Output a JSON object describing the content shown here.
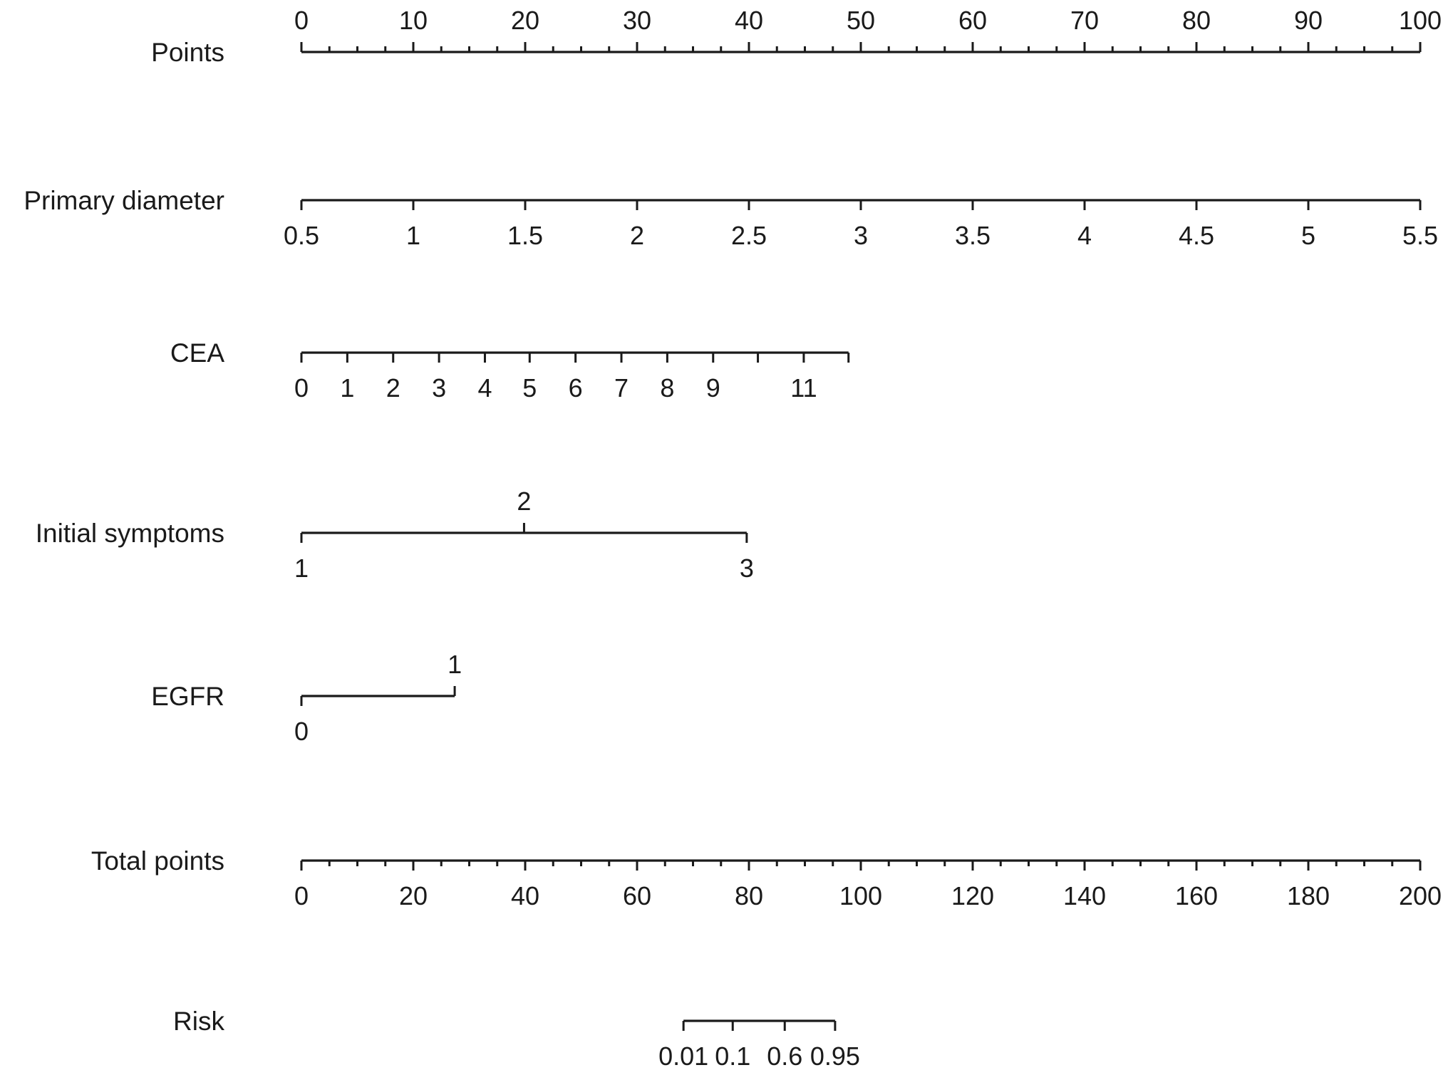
{
  "chart_data": {
    "type": "nomogram",
    "title": "",
    "rows": [
      {
        "label": "Points",
        "points_range": [
          0,
          100
        ],
        "label_position": "above",
        "ticks": [
          {
            "value": 0,
            "points": 0,
            "label": "0"
          },
          {
            "value": 10,
            "points": 10,
            "label": "10"
          },
          {
            "value": 20,
            "points": 20,
            "label": "20"
          },
          {
            "value": 30,
            "points": 30,
            "label": "30"
          },
          {
            "value": 40,
            "points": 40,
            "label": "40"
          },
          {
            "value": 50,
            "points": 50,
            "label": "50"
          },
          {
            "value": 60,
            "points": 60,
            "label": "60"
          },
          {
            "value": 70,
            "points": 70,
            "label": "70"
          },
          {
            "value": 80,
            "points": 80,
            "label": "80"
          },
          {
            "value": 90,
            "points": 90,
            "label": "90"
          },
          {
            "value": 100,
            "points": 100,
            "label": "100"
          }
        ],
        "minor_step": 2.5
      },
      {
        "label": "Primary diameter",
        "points_range": [
          0,
          100
        ],
        "label_position": "below",
        "ticks": [
          {
            "value": 0.5,
            "points": 0,
            "label": "0.5"
          },
          {
            "value": 1,
            "points": 10,
            "label": "1"
          },
          {
            "value": 1.5,
            "points": 20,
            "label": "1.5"
          },
          {
            "value": 2,
            "points": 30,
            "label": "2"
          },
          {
            "value": 2.5,
            "points": 40,
            "label": "2.5"
          },
          {
            "value": 3,
            "points": 50,
            "label": "3"
          },
          {
            "value": 3.5,
            "points": 60,
            "label": "3.5"
          },
          {
            "value": 4,
            "points": 70,
            "label": "4"
          },
          {
            "value": 4.5,
            "points": 80,
            "label": "4.5"
          },
          {
            "value": 5,
            "points": 90,
            "label": "5"
          },
          {
            "value": 5.5,
            "points": 100,
            "label": "5.5"
          }
        ]
      },
      {
        "label": "CEA",
        "points_range": [
          0,
          48.9
        ],
        "label_position": "below",
        "ticks": [
          {
            "value": 0,
            "points": 0,
            "label": "0"
          },
          {
            "value": 1,
            "points": 4.1,
            "label": "1"
          },
          {
            "value": 2,
            "points": 8.2,
            "label": "2"
          },
          {
            "value": 3,
            "points": 12.3,
            "label": "3"
          },
          {
            "value": 4,
            "points": 16.4,
            "label": "4"
          },
          {
            "value": 5,
            "points": 20.4,
            "label": "5"
          },
          {
            "value": 6,
            "points": 24.5,
            "label": "6"
          },
          {
            "value": 7,
            "points": 28.6,
            "label": "7"
          },
          {
            "value": 8,
            "points": 32.7,
            "label": "8"
          },
          {
            "value": 9,
            "points": 36.8,
            "label": "9"
          },
          {
            "value": 10,
            "points": 40.8,
            "label": ""
          },
          {
            "value": 11,
            "points": 44.9,
            "label": "11"
          },
          {
            "value": 12,
            "points": 48.9,
            "label": ""
          }
        ]
      },
      {
        "label": "Initial symptoms",
        "points_range": [
          0,
          39.8
        ],
        "ticks": [
          {
            "value": 1,
            "points": 0,
            "label": "1",
            "label_position": "below"
          },
          {
            "value": 2,
            "points": 19.9,
            "label": "2",
            "label_position": "above"
          },
          {
            "value": 3,
            "points": 39.8,
            "label": "3",
            "label_position": "below"
          }
        ]
      },
      {
        "label": "EGFR",
        "points_range": [
          0,
          13.7
        ],
        "ticks": [
          {
            "value": 0,
            "points": 0,
            "label": "0",
            "label_position": "below"
          },
          {
            "value": 1,
            "points": 13.7,
            "label": "1",
            "label_position": "above"
          }
        ]
      },
      {
        "label": "Total points",
        "total_range": [
          0,
          200
        ],
        "label_position": "below",
        "ticks": [
          {
            "value": 0,
            "label": "0"
          },
          {
            "value": 20,
            "label": "20"
          },
          {
            "value": 40,
            "label": "40"
          },
          {
            "value": 60,
            "label": "60"
          },
          {
            "value": 80,
            "label": "80"
          },
          {
            "value": 100,
            "label": "100"
          },
          {
            "value": 120,
            "label": "120"
          },
          {
            "value": 140,
            "label": "140"
          },
          {
            "value": 160,
            "label": "160"
          },
          {
            "value": 180,
            "label": "180"
          },
          {
            "value": 200,
            "label": "200"
          }
        ],
        "minor_step": 5
      },
      {
        "label": "Risk",
        "total_range": [
          68.3,
          95.4
        ],
        "label_position": "below",
        "ticks": [
          {
            "value": 0.01,
            "total": 68.3,
            "label": "0.01"
          },
          {
            "value": 0.1,
            "total": 77.1,
            "label": "0.1"
          },
          {
            "value": 0.6,
            "total": 86.4,
            "label": "0.6"
          },
          {
            "value": 0.95,
            "total": 95.4,
            "label": "0.95"
          }
        ]
      }
    ]
  }
}
